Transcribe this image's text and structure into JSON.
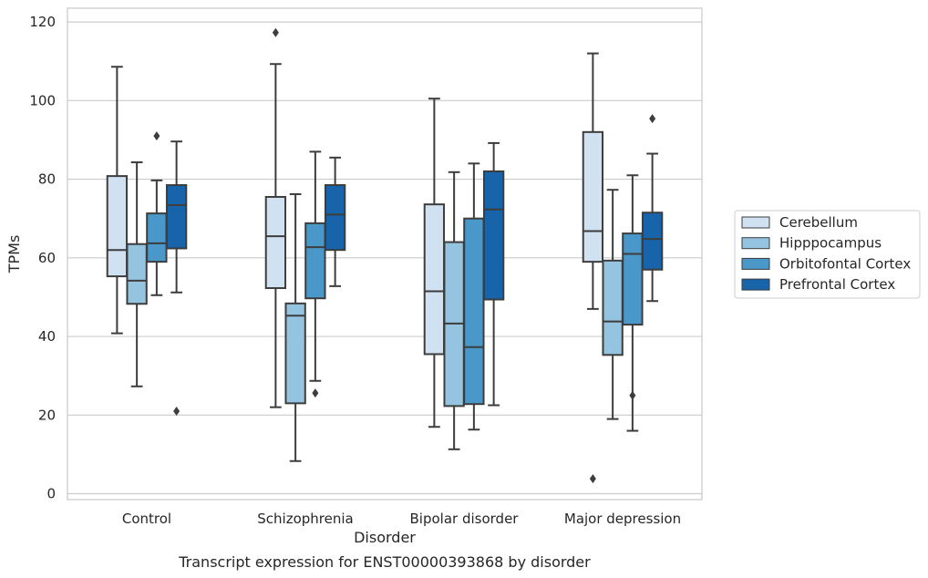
{
  "caption": "Transcript expression for ENST00000393868 by disorder",
  "chart_data": {
    "type": "box",
    "title": "",
    "xlabel": "Disorder",
    "ylabel": "TPMs",
    "ylim": [
      -1.5,
      123.5
    ],
    "yticks": [
      0,
      20,
      40,
      60,
      80,
      100,
      120
    ],
    "grid": "horizontal",
    "legend_position": "right",
    "categories": [
      "Control",
      "Schizophrenia",
      "Bipolar disorder",
      "Major depression"
    ],
    "series": [
      {
        "name": "Cerebellum",
        "color": "#d0e1f2",
        "boxes": [
          {
            "whisker_low": 40.8,
            "q1": 55.3,
            "median": 62.0,
            "q3": 80.8,
            "whisker_high": 108.6,
            "outliers": []
          },
          {
            "whisker_low": 22.0,
            "q1": 52.3,
            "median": 65.5,
            "q3": 75.5,
            "whisker_high": 109.3,
            "outliers": [
              117.3
            ]
          },
          {
            "whisker_low": 17.0,
            "q1": 35.5,
            "median": 51.5,
            "q3": 73.6,
            "whisker_high": 100.5,
            "outliers": []
          },
          {
            "whisker_low": 47.0,
            "q1": 59.0,
            "median": 66.8,
            "q3": 92.0,
            "whisker_high": 112.0,
            "outliers": [
              3.8
            ]
          }
        ]
      },
      {
        "name": "Hipppocampus",
        "color": "#94c4df",
        "boxes": [
          {
            "whisker_low": 27.3,
            "q1": 48.3,
            "median": 54.2,
            "q3": 63.5,
            "whisker_high": 84.3,
            "outliers": []
          },
          {
            "whisker_low": 8.3,
            "q1": 23.0,
            "median": 45.3,
            "q3": 48.4,
            "whisker_high": 76.2,
            "outliers": []
          },
          {
            "whisker_low": 11.3,
            "q1": 22.3,
            "median": 43.3,
            "q3": 64.0,
            "whisker_high": 81.8,
            "outliers": []
          },
          {
            "whisker_low": 19.0,
            "q1": 35.3,
            "median": 43.8,
            "q3": 59.3,
            "whisker_high": 77.3,
            "outliers": []
          }
        ]
      },
      {
        "name": "Orbitofontal Cortex",
        "color": "#4a98c9",
        "boxes": [
          {
            "whisker_low": 50.5,
            "q1": 59.0,
            "median": 63.7,
            "q3": 71.3,
            "whisker_high": 79.7,
            "outliers": [
              91.0
            ]
          },
          {
            "whisker_low": 28.7,
            "q1": 49.7,
            "median": 62.7,
            "q3": 68.8,
            "whisker_high": 87.0,
            "outliers": [
              25.6
            ]
          },
          {
            "whisker_low": 16.3,
            "q1": 22.8,
            "median": 37.3,
            "q3": 70.0,
            "whisker_high": 84.0,
            "outliers": []
          },
          {
            "whisker_low": 16.0,
            "q1": 43.0,
            "median": 61.0,
            "q3": 66.2,
            "whisker_high": 81.0,
            "outliers": [
              25.0
            ]
          }
        ]
      },
      {
        "name": "Prefrontal Cortex",
        "color": "#1764ab",
        "boxes": [
          {
            "whisker_low": 51.2,
            "q1": 62.4,
            "median": 73.4,
            "q3": 78.5,
            "whisker_high": 89.6,
            "outliers": [
              21.0
            ]
          },
          {
            "whisker_low": 52.8,
            "q1": 62.0,
            "median": 71.0,
            "q3": 78.5,
            "whisker_high": 85.5,
            "outliers": []
          },
          {
            "whisker_low": 22.5,
            "q1": 49.4,
            "median": 72.3,
            "q3": 82.0,
            "whisker_high": 89.2,
            "outliers": []
          },
          {
            "whisker_low": 49.0,
            "q1": 57.0,
            "median": 64.8,
            "q3": 71.5,
            "whisker_high": 86.5,
            "outliers": [
              95.4
            ]
          }
        ]
      }
    ]
  }
}
